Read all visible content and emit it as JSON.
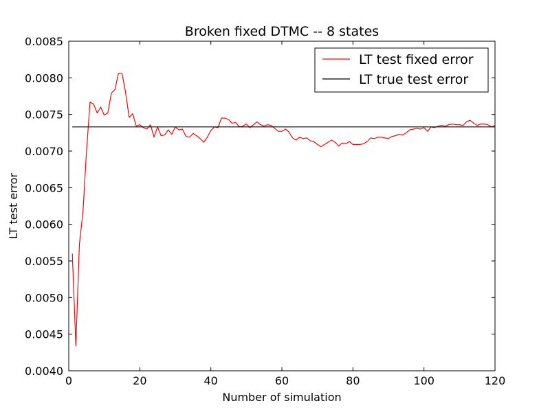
{
  "chart_data": {
    "type": "line",
    "title": "Broken fixed DTMC -- 8 states",
    "xlabel": "Number of simulation",
    "ylabel": "LT test error",
    "xlim": [
      0,
      120
    ],
    "ylim": [
      0.004,
      0.0085
    ],
    "xticks": [
      0,
      20,
      40,
      60,
      80,
      100,
      120
    ],
    "yticks": [
      0.004,
      0.0045,
      0.005,
      0.0055,
      0.006,
      0.0065,
      0.007,
      0.0075,
      0.008,
      0.0085
    ],
    "xtick_labels": [
      "0",
      "20",
      "40",
      "60",
      "80",
      "100",
      "120"
    ],
    "ytick_labels": [
      "0.0040",
      "0.0045",
      "0.0050",
      "0.0055",
      "0.0060",
      "0.0065",
      "0.0070",
      "0.0075",
      "0.0080",
      "0.0085"
    ],
    "grid": false,
    "legend_position": "top-right",
    "series": [
      {
        "name": "LT test fixed error",
        "color": "#ff0000",
        "x": [
          1,
          2,
          3,
          4,
          5,
          6,
          7,
          8,
          9,
          10,
          11,
          12,
          13,
          14,
          15,
          16,
          17,
          18,
          19,
          20,
          21,
          22,
          23,
          24,
          25,
          26,
          27,
          28,
          29,
          30,
          31,
          32,
          33,
          34,
          35,
          36,
          37,
          38,
          39,
          40,
          41,
          42,
          43,
          44,
          45,
          46,
          47,
          48,
          49,
          50,
          51,
          52,
          53,
          54,
          55,
          56,
          57,
          58,
          59,
          60,
          61,
          62,
          63,
          64,
          65,
          66,
          67,
          68,
          69,
          70,
          71,
          72,
          73,
          74,
          75,
          76,
          77,
          78,
          79,
          80,
          81,
          82,
          83,
          84,
          85,
          86,
          87,
          88,
          89,
          90,
          91,
          92,
          93,
          94,
          95,
          96,
          97,
          98,
          99,
          100,
          101,
          102,
          103,
          104,
          105,
          106,
          107,
          108,
          109,
          110,
          111,
          112,
          113,
          114,
          115,
          116,
          117,
          118,
          119,
          120
        ],
        "y": [
          0.0056,
          0.00434,
          0.00573,
          0.00617,
          0.007,
          0.00767,
          0.00764,
          0.00752,
          0.0076,
          0.00749,
          0.00752,
          0.00779,
          0.00784,
          0.00806,
          0.00806,
          0.0078,
          0.00746,
          0.00751,
          0.00734,
          0.00736,
          0.00732,
          0.0073,
          0.00736,
          0.00719,
          0.00733,
          0.00721,
          0.00722,
          0.00729,
          0.00723,
          0.00733,
          0.00729,
          0.0073,
          0.0072,
          0.00719,
          0.00724,
          0.00721,
          0.00717,
          0.00712,
          0.00719,
          0.00728,
          0.00733,
          0.00732,
          0.00745,
          0.00745,
          0.00743,
          0.00738,
          0.00739,
          0.00733,
          0.00734,
          0.00737,
          0.00732,
          0.00736,
          0.0074,
          0.00736,
          0.00734,
          0.00736,
          0.00735,
          0.00731,
          0.00727,
          0.00727,
          0.0073,
          0.00726,
          0.00718,
          0.00715,
          0.00719,
          0.00717,
          0.00718,
          0.00714,
          0.00713,
          0.00709,
          0.00706,
          0.00709,
          0.00712,
          0.00715,
          0.00712,
          0.00707,
          0.00711,
          0.0071,
          0.00713,
          0.00709,
          0.00709,
          0.00709,
          0.0071,
          0.00713,
          0.00718,
          0.00717,
          0.00719,
          0.00719,
          0.00718,
          0.00717,
          0.0072,
          0.00721,
          0.00723,
          0.00722,
          0.00725,
          0.00729,
          0.0073,
          0.00731,
          0.0073,
          0.00732,
          0.00727,
          0.00733,
          0.00732,
          0.00734,
          0.00735,
          0.00734,
          0.00736,
          0.00737,
          0.00736,
          0.00736,
          0.00735,
          0.0074,
          0.00742,
          0.00738,
          0.00735,
          0.00737,
          0.00737,
          0.00736,
          0.00733,
          0.00735
        ]
      },
      {
        "name": "LT true test error",
        "color": "#000000",
        "x": [
          1,
          120
        ],
        "y": [
          0.00733,
          0.00733
        ]
      }
    ]
  }
}
